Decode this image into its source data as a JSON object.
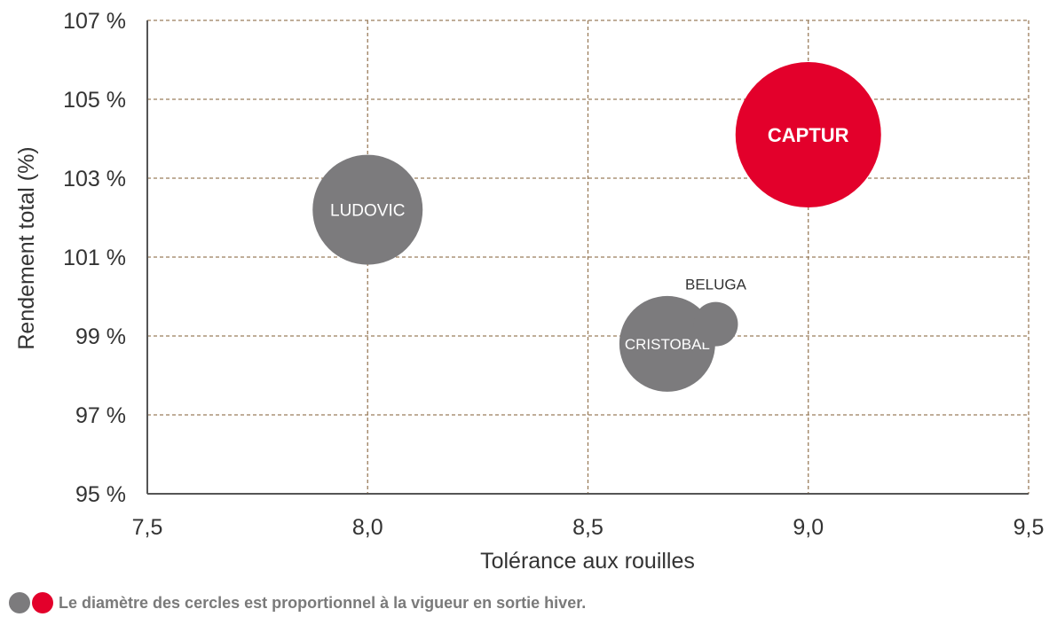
{
  "colors": {
    "gray": "#7c7b7d",
    "red": "#e3002b",
    "grid": "#9b7d5c",
    "axis": "#555555",
    "text": "#333333"
  },
  "chart_data": {
    "type": "scatter",
    "xlabel": "Tolérance aux rouilles",
    "ylabel": "Rendement total (%)",
    "xlim": [
      7.5,
      9.5
    ],
    "ylim": [
      95,
      107
    ],
    "x_ticks": [
      7.5,
      8.0,
      8.5,
      9.0,
      9.5
    ],
    "x_tick_labels": [
      "7,5",
      "8,0",
      "8,5",
      "9,0",
      "9,5"
    ],
    "y_ticks": [
      95,
      97,
      99,
      101,
      103,
      105,
      107
    ],
    "y_tick_labels": [
      "95 %",
      "97 %",
      "99 %",
      "101 %",
      "103 %",
      "105 %",
      "107 %"
    ],
    "grid": "dashed",
    "points": [
      {
        "label": "LUDOVIC",
        "x": 8.0,
        "y": 102.2,
        "size": 124,
        "color": "gray",
        "label_inside": true
      },
      {
        "label": "CAPTUR",
        "x": 9.0,
        "y": 104.1,
        "size": 164,
        "color": "red",
        "label_inside": true
      },
      {
        "label": "CRISTOBAL",
        "x": 8.68,
        "y": 98.8,
        "size": 108,
        "color": "gray",
        "label_inside": true
      },
      {
        "label": "BELUGA",
        "x": 8.79,
        "y": 99.3,
        "size": 50,
        "color": "gray",
        "label_inside": false
      }
    ]
  },
  "footnote": {
    "text": "Le diamètre des cercles est proportionnel à la vigueur en sortie hiver.",
    "dot_colors": [
      "gray",
      "red"
    ]
  }
}
